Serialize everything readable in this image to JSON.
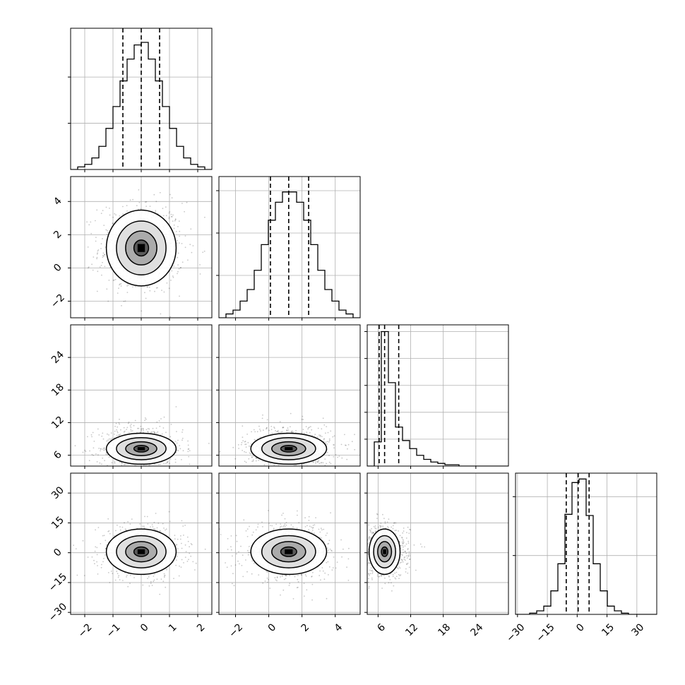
{
  "chart_data": {
    "type": "corner",
    "grid": true,
    "params": [
      {
        "lim": [
          -2.5,
          2.5
        ],
        "ticks": [
          -2,
          -1,
          0,
          1,
          2
        ],
        "tick_labels": [
          "−2",
          "−1",
          "0",
          "1",
          "2"
        ],
        "quantiles": [
          -0.65,
          0.0,
          0.65
        ],
        "hist_edges": [
          -2.5,
          -2.25,
          -2.0,
          -1.75,
          -1.5,
          -1.25,
          -1.0,
          -0.75,
          -0.5,
          -0.25,
          0.0,
          0.25,
          0.5,
          0.75,
          1.0,
          1.25,
          1.5,
          1.75,
          2.0,
          2.25,
          2.5
        ],
        "hist_values": [
          0,
          2,
          4,
          9,
          18,
          32,
          49,
          69,
          86,
          97,
          99,
          86,
          69,
          49,
          32,
          18,
          9,
          4,
          2,
          0
        ],
        "hist_ylim": [
          0,
          110
        ],
        "hist_yticks": [
          36,
          72
        ],
        "center": 0.0,
        "sd": 0.65
      },
      {
        "lim": [
          -3.0,
          5.5
        ],
        "ticks": [
          -2,
          0,
          2,
          4
        ],
        "tick_labels": [
          "−2",
          "0",
          "2",
          "4"
        ],
        "quantiles": [
          0.1,
          1.2,
          2.4
        ],
        "hist_edges": [
          -3.0,
          -2.575,
          -2.15,
          -1.725,
          -1.3,
          -0.875,
          -0.45,
          -0.025,
          0.4,
          0.825,
          1.25,
          1.675,
          2.1,
          2.525,
          2.95,
          3.375,
          3.8,
          4.225,
          4.65,
          5.075,
          5.5
        ],
        "hist_values": [
          0,
          3,
          6,
          13,
          22,
          37,
          57,
          76,
          90,
          98,
          98,
          90,
          76,
          57,
          37,
          22,
          13,
          6,
          3,
          0
        ],
        "hist_ylim": [
          0,
          110
        ],
        "hist_yticks": [
          33,
          66,
          99
        ],
        "center": 1.2,
        "sd": 1.2
      },
      {
        "lim": [
          4.0,
          30.0
        ],
        "ticks": [
          6,
          12,
          18,
          24
        ],
        "tick_labels": [
          "6",
          "12",
          "18",
          "24"
        ],
        "quantiles": [
          6.2,
          7.2,
          9.8
        ],
        "hist_edges": [
          4.0,
          5.3,
          6.6,
          7.9,
          9.2,
          10.5,
          11.8,
          13.1,
          14.4,
          15.7,
          17.0,
          18.3,
          19.6,
          20.9,
          22.2,
          23.5,
          24.8,
          26.1,
          27.4,
          28.7,
          30.0
        ],
        "hist_values": [
          0,
          18,
          100,
          62,
          29,
          19,
          13,
          8,
          5,
          3,
          2,
          1,
          1,
          0,
          0,
          0,
          0,
          0,
          0,
          0
        ],
        "hist_ylim": [
          0,
          105
        ],
        "hist_yticks": [
          20,
          40,
          60,
          80,
          100
        ],
        "center": 7.2,
        "sd": 1.5
      },
      {
        "lim": [
          -31.0,
          40.0
        ],
        "ticks": [
          -30,
          -15,
          0,
          15,
          30
        ],
        "tick_labels": [
          "−30",
          "−15",
          "0",
          "15",
          "30"
        ],
        "quantiles": [
          -5.5,
          0.5,
          6.0
        ],
        "hist_edges": [
          -31.0,
          -27.45,
          -23.9,
          -20.35,
          -16.8,
          -13.25,
          -9.7,
          -6.15,
          -2.6,
          0.95,
          4.5,
          8.05,
          11.6,
          15.15,
          18.7,
          22.25,
          25.8,
          29.35,
          32.9,
          36.45,
          40.0
        ],
        "hist_values": [
          0,
          0,
          1,
          3,
          7,
          20,
          43,
          85,
          112,
          115,
          84,
          43,
          20,
          7,
          3,
          1,
          0,
          0,
          0,
          0
        ],
        "hist_ylim": [
          0,
          120
        ],
        "hist_yticks": [
          50,
          100
        ],
        "center": 0.5,
        "sd": 6.0
      }
    ],
    "density_levels": [
      0.12,
      0.39,
      0.71,
      0.93
    ],
    "scatter_count": 700,
    "scatter_seed": 12345
  }
}
